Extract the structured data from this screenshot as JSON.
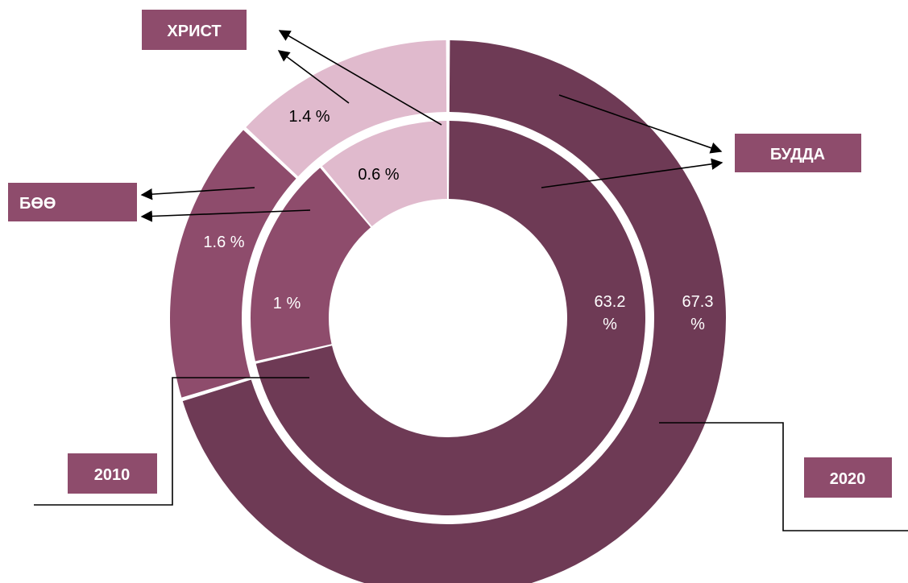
{
  "chart_data": {
    "type": "pie",
    "variant": "nested-donut",
    "title": "",
    "rings": [
      {
        "name": "2020",
        "position": "outer",
        "slices": [
          {
            "category": "БУДДА",
            "label": "67.3 %",
            "value": 67.3
          },
          {
            "category": "БӨӨ",
            "label": "1.6 %",
            "value": 1.6
          },
          {
            "category": "ХРИСТ",
            "label": "1.4 %",
            "value": 1.4
          }
        ]
      },
      {
        "name": "2010",
        "position": "inner",
        "slices": [
          {
            "category": "БУДДА",
            "label": "63.2 %",
            "value": 63.2
          },
          {
            "category": "БӨӨ",
            "label": "1 %",
            "value": 1
          },
          {
            "category": "ХРИСТ",
            "label": "0.6 %",
            "value": 0.6
          }
        ]
      }
    ],
    "category_labels": [
      "ХРИСТ",
      "БУДДА",
      "БӨӨ"
    ],
    "ring_labels": [
      "2010",
      "2020"
    ],
    "colors": {
      "БУДДА": "#6e3a55",
      "БӨӨ": "#8e4c6c",
      "ХРИСТ": "#e0bacd",
      "label_box": "#8e4c6c",
      "text_dark_bg": "#ffffff",
      "text_light_bg": "#000000"
    }
  }
}
